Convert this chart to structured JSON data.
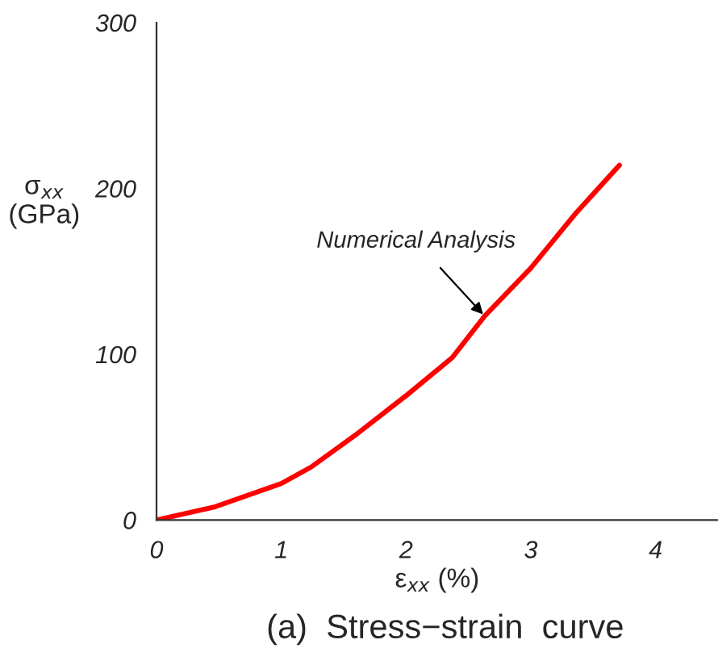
{
  "chart_data": {
    "type": "line",
    "title": "(a)  Stress−strain  curve",
    "xlabel": "ε$_{xx}$ (%)",
    "ylabel": "σ$_{xx}$\n(GPa)",
    "annotations": [
      {
        "text": "Numerical Analysis",
        "x": 2.63,
        "y": 123
      }
    ],
    "series": [
      {
        "color": "#ff0000",
        "x": [
          0,
          0.47,
          1.0,
          1.24,
          1.59,
          2.0,
          2.37,
          2.63,
          3.0,
          3.36,
          3.71
        ],
        "values": [
          0,
          8,
          22,
          32,
          51,
          75,
          98,
          123,
          152,
          185,
          214
        ]
      }
    ],
    "xlim": [
      0,
      4.5
    ],
    "xticks": [
      0,
      1,
      2,
      3,
      4
    ],
    "ylim": [
      0,
      300
    ],
    "yticks": [
      0,
      100,
      200,
      300
    ],
    "grid": false,
    "legend": false
  }
}
